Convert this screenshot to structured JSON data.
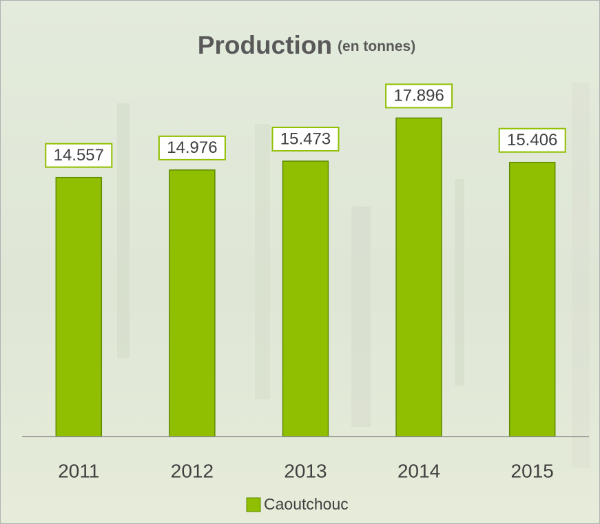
{
  "chart_data": {
    "type": "bar",
    "title": "Production",
    "subtitle": "(en tonnes)",
    "categories": [
      "2011",
      "2012",
      "2013",
      "2014",
      "2015"
    ],
    "series": [
      {
        "name": "Caoutchouc",
        "color": "#8fbf00",
        "values": [
          14557,
          14976,
          15473,
          17896,
          15406
        ],
        "value_labels": [
          "14.557",
          "14.976",
          "15.473",
          "17.896",
          "15.406"
        ]
      }
    ],
    "ylim": [
      0,
      20000
    ]
  }
}
